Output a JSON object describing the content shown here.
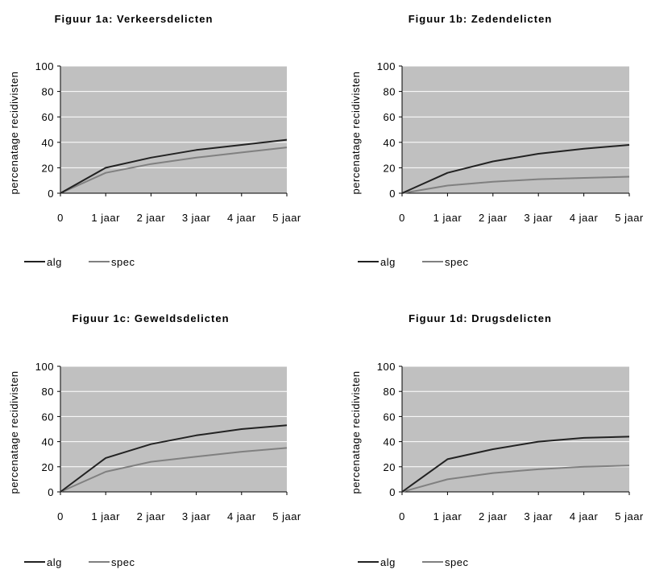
{
  "chart_data": [
    {
      "type": "line",
      "title": "Figuur 1a: Verkeersdelicten",
      "ylabel": "percenatage recidivisten",
      "xlabel": "",
      "categories": [
        "0",
        "1 jaar",
        "2 jaar",
        "3 jaar",
        "4 jaar",
        "5 jaar"
      ],
      "yticks": [
        "0",
        "20",
        "40",
        "60",
        "80",
        "100"
      ],
      "ylim": [
        0,
        100
      ],
      "grid": true,
      "legend": "bottom-left",
      "series": [
        {
          "name": "alg",
          "color": "#222222",
          "values": [
            0,
            20,
            28,
            34,
            38,
            42
          ]
        },
        {
          "name": "spec",
          "color": "#808080",
          "values": [
            0,
            16,
            23,
            28,
            32,
            36
          ]
        }
      ]
    },
    {
      "type": "line",
      "title": "Figuur 1b: Zedendelicten",
      "ylabel": "percenatage recidivisten",
      "xlabel": "",
      "categories": [
        "0",
        "1 jaar",
        "2 jaar",
        "3 jaar",
        "4 jaar",
        "5 jaar"
      ],
      "yticks": [
        "0",
        "20",
        "40",
        "60",
        "80",
        "100"
      ],
      "ylim": [
        0,
        100
      ],
      "grid": true,
      "legend": "bottom-left",
      "series": [
        {
          "name": "alg",
          "color": "#222222",
          "values": [
            0,
            16,
            25,
            31,
            35,
            38
          ]
        },
        {
          "name": "spec",
          "color": "#808080",
          "values": [
            0,
            6,
            9,
            11,
            12,
            13
          ]
        }
      ]
    },
    {
      "type": "line",
      "title": "Figuur 1c: Geweldsdelicten",
      "ylabel": "percenatage recidivisten",
      "xlabel": "",
      "categories": [
        "0",
        "1 jaar",
        "2 jaar",
        "3 jaar",
        "4 jaar",
        "5 jaar"
      ],
      "yticks": [
        "0",
        "20",
        "40",
        "60",
        "80",
        "100"
      ],
      "ylim": [
        0,
        100
      ],
      "grid": true,
      "legend": "bottom-left",
      "series": [
        {
          "name": "alg",
          "color": "#222222",
          "values": [
            0,
            27,
            38,
            45,
            50,
            53
          ]
        },
        {
          "name": "spec",
          "color": "#808080",
          "values": [
            0,
            16,
            24,
            28,
            32,
            35
          ]
        }
      ]
    },
    {
      "type": "line",
      "title": "Figuur 1d: Drugsdelicten",
      "ylabel": "percenatage recidivisten",
      "xlabel": "",
      "categories": [
        "0",
        "1 jaar",
        "2 jaar",
        "3 jaar",
        "4 jaar",
        "5 jaar"
      ],
      "yticks": [
        "0",
        "20",
        "40",
        "60",
        "80",
        "100"
      ],
      "ylim": [
        0,
        100
      ],
      "grid": true,
      "legend": "bottom-left",
      "series": [
        {
          "name": "alg",
          "color": "#222222",
          "values": [
            0,
            26,
            34,
            40,
            43,
            44
          ]
        },
        {
          "name": "spec",
          "color": "#808080",
          "values": [
            0,
            10,
            15,
            18,
            20,
            21
          ]
        }
      ]
    }
  ],
  "plot_background": "#c0c0c0",
  "gridline_color": "#ffffff"
}
